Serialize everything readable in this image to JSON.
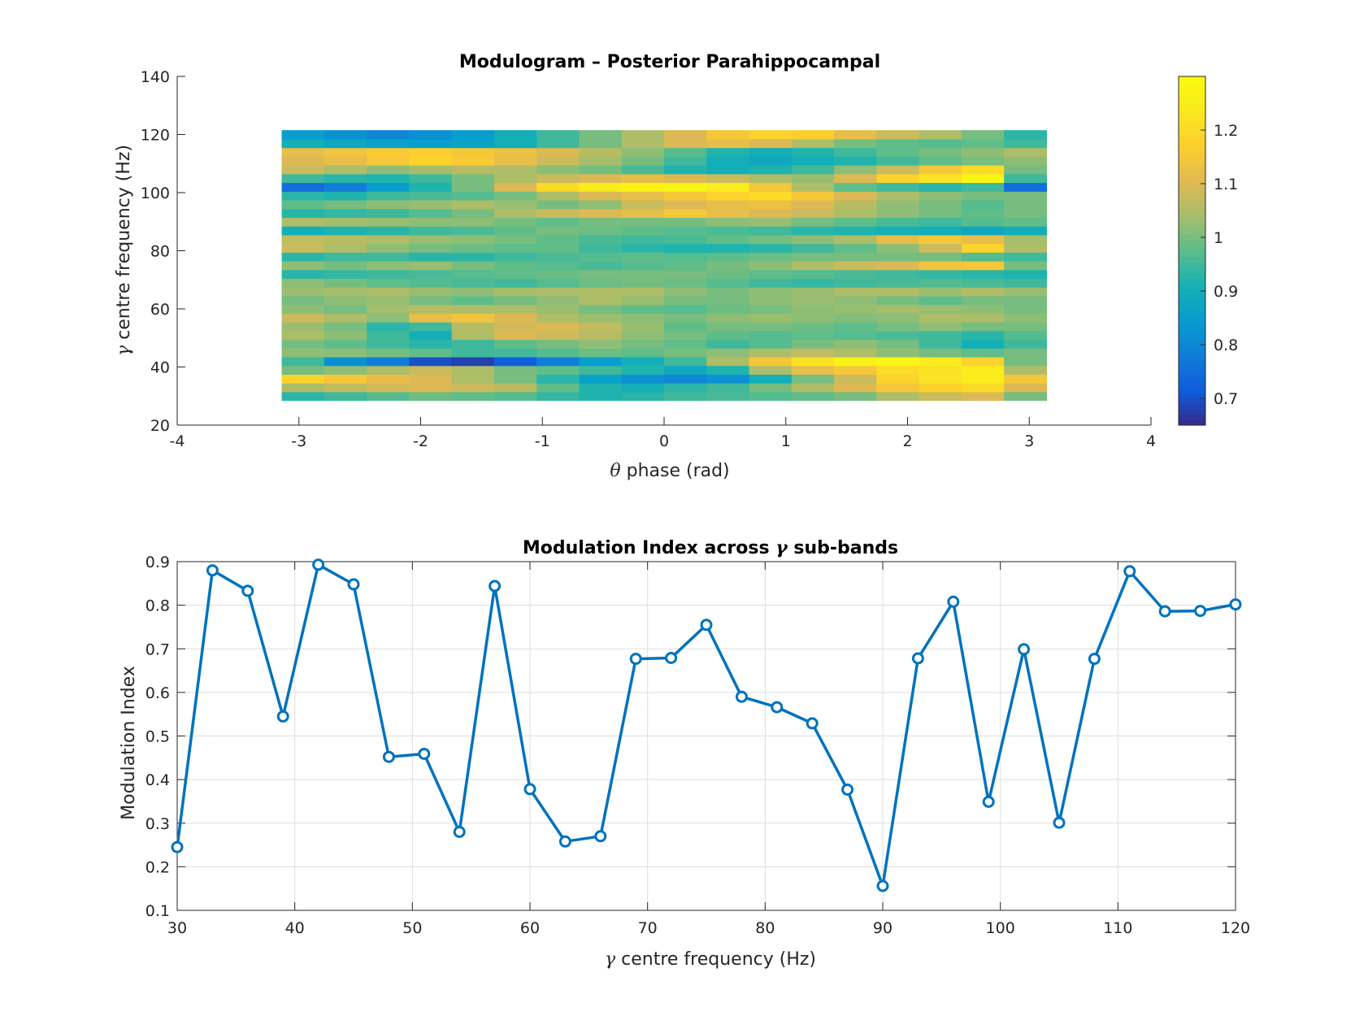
{
  "chart_data": [
    {
      "type": "heatmap",
      "title": "Modulogram – Posterior Parahippocampal",
      "xlabel": "θ phase (rad)",
      "ylabel": "γ centre frequency (Hz)",
      "xlim": [
        -4,
        4
      ],
      "ylim": [
        20,
        140
      ],
      "xticks": [
        "-4",
        "-3",
        "-2",
        "-1",
        "0",
        "1",
        "2",
        "3",
        "4"
      ],
      "yticks": [
        "20",
        "40",
        "60",
        "80",
        "100",
        "120",
        "140"
      ],
      "x_extent": [
        -3.14159,
        3.14159
      ],
      "y_extent": [
        28.5,
        121.5
      ],
      "colormap": "parula",
      "clim": [
        0.65,
        1.3
      ],
      "colorbar_ticks": [
        "0.7",
        "0.8",
        "0.9",
        "1",
        "1.1",
        "1.2"
      ],
      "grid": false,
      "phase_bins": 18,
      "frequency_rows": 31,
      "row_frequencies_hz": [
        30,
        33,
        36,
        39,
        42,
        45,
        48,
        51,
        54,
        57,
        60,
        63,
        66,
        69,
        72,
        75,
        78,
        81,
        84,
        87,
        90,
        93,
        96,
        99,
        102,
        105,
        108,
        111,
        114,
        117,
        120
      ],
      "values": [
        [
          0.93,
          0.95,
          0.97,
          0.99,
          0.98,
          0.97,
          0.94,
          0.92,
          0.93,
          0.95,
          0.96,
          0.97,
          0.98,
          1.0,
          1.05,
          1.08,
          1.1,
          1.0
        ],
        [
          1.05,
          1.07,
          1.09,
          1.1,
          1.08,
          1.06,
          0.98,
          0.92,
          0.9,
          0.93,
          0.95,
          1.0,
          1.05,
          1.1,
          1.15,
          1.18,
          1.2,
          1.1
        ],
        [
          1.18,
          1.15,
          1.12,
          1.1,
          1.05,
          1.0,
          0.93,
          0.86,
          0.82,
          0.8,
          0.82,
          0.9,
          1.0,
          1.08,
          1.18,
          1.22,
          1.25,
          1.15
        ],
        [
          1.0,
          1.02,
          1.05,
          1.08,
          1.05,
          1.0,
          0.98,
          0.95,
          0.92,
          0.88,
          0.92,
          1.05,
          1.12,
          1.15,
          1.2,
          1.22,
          1.25,
          1.05
        ],
        [
          0.95,
          0.82,
          0.78,
          0.7,
          0.68,
          0.72,
          0.78,
          0.85,
          0.9,
          0.95,
          1.05,
          1.15,
          1.22,
          1.27,
          1.28,
          1.25,
          1.18,
          1.0
        ],
        [
          1.02,
          1.02,
          1.0,
          0.98,
          0.95,
          0.95,
          0.97,
          0.99,
          0.98,
          1.0,
          1.02,
          1.05,
          1.07,
          1.05,
          1.02,
          1.0,
          0.98,
          1.0
        ],
        [
          1.0,
          0.98,
          0.95,
          0.93,
          0.95,
          0.98,
          1.0,
          1.02,
          1.0,
          0.98,
          0.95,
          0.97,
          1.0,
          1.02,
          1.0,
          0.95,
          0.9,
          0.95
        ],
        [
          1.05,
          1.02,
          0.95,
          0.9,
          1.05,
          1.1,
          1.08,
          1.06,
          1.02,
          1.0,
          0.98,
          0.97,
          0.98,
          0.97,
          0.96,
          0.95,
          0.93,
          0.97
        ],
        [
          1.03,
          1.0,
          0.93,
          0.95,
          1.06,
          1.09,
          1.1,
          1.07,
          1.03,
          0.98,
          1.0,
          1.0,
          0.99,
          0.98,
          1.0,
          1.02,
          1.0,
          1.0
        ],
        [
          1.08,
          1.05,
          1.02,
          1.12,
          1.14,
          1.1,
          1.05,
          1.03,
          1.02,
          1.0,
          1.02,
          1.03,
          1.02,
          1.01,
          1.02,
          1.05,
          1.05,
          1.02
        ],
        [
          1.02,
          1.0,
          1.04,
          1.06,
          1.05,
          1.05,
          1.03,
          1.0,
          0.98,
          0.97,
          0.99,
          1.0,
          1.02,
          1.03,
          1.04,
          1.03,
          1.02,
          1.0
        ],
        [
          1.0,
          1.02,
          1.03,
          1.0,
          0.98,
          1.0,
          1.02,
          1.05,
          1.03,
          1.0,
          1.0,
          1.02,
          1.03,
          1.02,
          1.0,
          0.98,
          1.0,
          1.0
        ],
        [
          1.03,
          1.04,
          1.05,
          1.03,
          1.02,
          1.04,
          1.05,
          1.05,
          1.05,
          1.02,
          1.0,
          1.02,
          1.03,
          1.05,
          1.05,
          1.03,
          1.05,
          1.03
        ],
        [
          1.02,
          1.0,
          0.98,
          0.97,
          0.96,
          0.95,
          0.97,
          0.99,
          1.0,
          0.99,
          0.97,
          0.95,
          0.94,
          0.95,
          0.96,
          0.97,
          0.96,
          0.95
        ],
        [
          0.93,
          0.94,
          0.95,
          0.96,
          0.97,
          0.98,
          0.99,
          1.0,
          1.0,
          1.0,
          0.99,
          0.98,
          0.97,
          0.96,
          0.95,
          0.94,
          0.93,
          0.92
        ],
        [
          1.02,
          1.0,
          1.02,
          1.03,
          1.0,
          0.98,
          0.97,
          0.96,
          0.97,
          0.98,
          1.0,
          1.02,
          1.05,
          1.08,
          1.1,
          1.14,
          1.15,
          1.0
        ],
        [
          0.93,
          0.95,
          0.95,
          0.93,
          0.93,
          0.95,
          0.96,
          0.97,
          0.98,
          0.97,
          0.98,
          0.99,
          1.0,
          1.0,
          1.0,
          1.0,
          0.97,
          0.95
        ],
        [
          1.08,
          1.05,
          1.02,
          1.0,
          0.99,
          0.98,
          0.98,
          0.95,
          0.93,
          0.92,
          0.92,
          0.93,
          0.95,
          0.98,
          1.02,
          1.08,
          1.18,
          1.05
        ],
        [
          1.07,
          1.06,
          1.05,
          1.03,
          1.02,
          1.0,
          0.98,
          0.96,
          0.95,
          0.96,
          0.98,
          1.0,
          1.02,
          1.05,
          1.12,
          1.15,
          1.12,
          1.04
        ],
        [
          0.9,
          0.92,
          0.93,
          0.95,
          0.96,
          0.98,
          1.0,
          0.99,
          0.98,
          0.97,
          0.96,
          0.95,
          0.93,
          0.92,
          0.91,
          0.9,
          0.88,
          0.9
        ],
        [
          1.05,
          1.04,
          1.03,
          1.02,
          1.02,
          1.0,
          0.98,
          1.0,
          1.0,
          1.0,
          1.02,
          1.03,
          1.0,
          0.98,
          0.96,
          0.95,
          0.97,
          0.98
        ],
        [
          0.93,
          0.94,
          0.95,
          0.97,
          1.0,
          1.05,
          1.08,
          1.1,
          1.12,
          1.15,
          1.12,
          1.1,
          1.08,
          1.05,
          1.02,
          1.0,
          0.98,
          1.0
        ],
        [
          0.98,
          1.0,
          1.02,
          1.03,
          1.05,
          1.03,
          1.0,
          1.02,
          1.08,
          1.1,
          1.12,
          1.13,
          1.1,
          1.06,
          1.02,
          1.0,
          0.97,
          1.0
        ],
        [
          0.93,
          0.92,
          0.95,
          0.96,
          0.97,
          1.0,
          1.05,
          1.1,
          1.12,
          1.15,
          1.18,
          1.2,
          1.15,
          1.1,
          1.05,
          1.02,
          1.0,
          1.0
        ],
        [
          0.75,
          0.78,
          0.85,
          0.92,
          1.0,
          1.1,
          1.2,
          1.25,
          1.27,
          1.28,
          1.25,
          1.15,
          1.05,
          0.98,
          0.95,
          0.93,
          0.95,
          0.75
        ],
        [
          0.95,
          0.93,
          0.92,
          0.95,
          1.0,
          1.05,
          1.08,
          1.1,
          1.12,
          1.1,
          1.08,
          1.05,
          1.03,
          1.1,
          1.18,
          1.22,
          1.28,
          0.95
        ],
        [
          1.08,
          1.05,
          1.02,
          1.04,
          1.06,
          1.05,
          1.02,
          1.0,
          0.96,
          0.92,
          0.9,
          0.92,
          0.95,
          1.02,
          1.08,
          1.15,
          1.2,
          1.0
        ],
        [
          1.1,
          1.12,
          1.15,
          1.18,
          1.16,
          1.12,
          1.08,
          1.04,
          1.0,
          0.95,
          0.9,
          0.88,
          0.9,
          0.92,
          0.95,
          0.98,
          1.0,
          1.02
        ],
        [
          1.12,
          1.14,
          1.16,
          1.17,
          1.15,
          1.13,
          1.1,
          1.06,
          1.02,
          0.97,
          0.92,
          0.9,
          0.92,
          0.95,
          0.98,
          1.0,
          1.02,
          1.05
        ],
        [
          0.9,
          0.88,
          0.86,
          0.85,
          0.87,
          0.9,
          0.95,
          1.0,
          1.05,
          1.1,
          1.12,
          1.1,
          1.05,
          1.0,
          0.98,
          0.97,
          0.98,
          0.95
        ],
        [
          0.85,
          0.82,
          0.8,
          0.82,
          0.85,
          0.9,
          0.95,
          1.0,
          1.05,
          1.1,
          1.15,
          1.18,
          1.17,
          1.12,
          1.08,
          1.05,
          1.0,
          0.93
        ]
      ]
    },
    {
      "type": "line",
      "title": "Modulation Index across γ sub-bands",
      "xlabel": "γ centre frequency (Hz)",
      "ylabel": "Modulation Index",
      "xlim": [
        30,
        120
      ],
      "ylim": [
        0.1,
        0.9
      ],
      "xticks": [
        "30",
        "40",
        "50",
        "60",
        "70",
        "80",
        "90",
        "100",
        "110",
        "120"
      ],
      "yticks": [
        "0.1",
        "0.2",
        "0.3",
        "0.4",
        "0.5",
        "0.6",
        "0.7",
        "0.8",
        "0.9"
      ],
      "grid": true,
      "marker": "circle",
      "color": "#0072BD",
      "x": [
        30,
        33,
        36,
        39,
        42,
        45,
        48,
        51,
        54,
        57,
        60,
        63,
        66,
        69,
        72,
        75,
        78,
        81,
        84,
        87,
        90,
        93,
        96,
        99,
        102,
        105,
        108,
        111,
        114,
        117,
        120
      ],
      "y": [
        0.245,
        0.88,
        0.833,
        0.545,
        0.893,
        0.848,
        0.452,
        0.459,
        0.28,
        0.844,
        0.378,
        0.258,
        0.27,
        0.677,
        0.679,
        0.755,
        0.59,
        0.566,
        0.529,
        0.377,
        0.156,
        0.678,
        0.808,
        0.349,
        0.699,
        0.301,
        0.677,
        0.878,
        0.786,
        0.787,
        0.802
      ]
    }
  ]
}
